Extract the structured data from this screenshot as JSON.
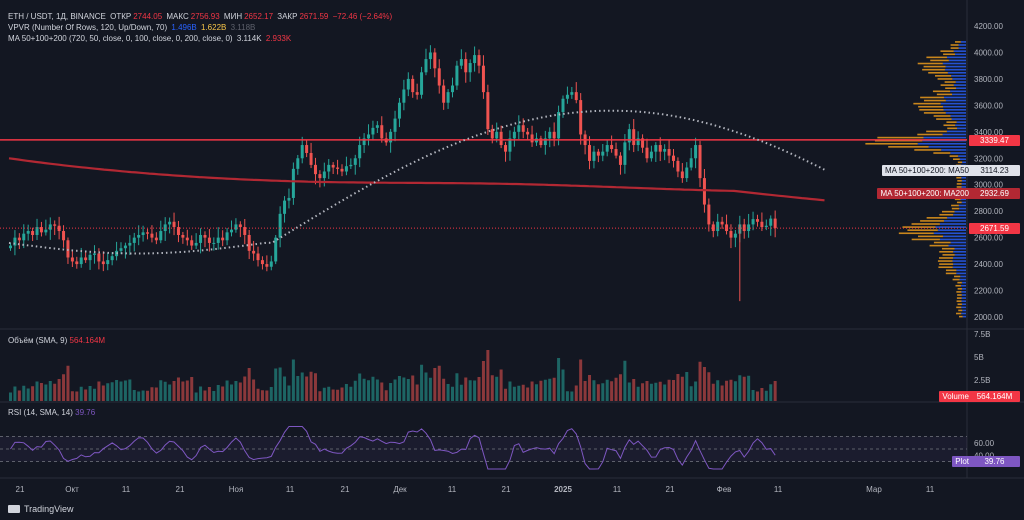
{
  "legend": {
    "symbol": "ETH / USDT, 1Д, BINANCE",
    "open_label": "ОТКР",
    "open": "2744.05",
    "high_label": "МАКС",
    "high": "2756.93",
    "low_label": "МИН",
    "low": "2652.17",
    "close_label": "ЗАКР",
    "close": "2671.59",
    "change": "−72.46 (−2.64%)",
    "vpvr_label": "VPVR (Number Of Rows, 120, Up/Down, 70)",
    "vpvr_up": "1.496B",
    "vpvr_down": "1.622B",
    "vpvr_total": "3.118B",
    "ma_label": "MA 50+100+200 (720, 50, close, 0, 100, close, 0, 200, close, 0)",
    "ma_v1": "3.114K",
    "ma_v2": "2.933K"
  },
  "volume_pane": {
    "title": "Объём (SMA, 9)",
    "value": "564.164M",
    "tag": "Volume",
    "tag_value": "564.164M"
  },
  "rsi_pane": {
    "title": "RSI (14, SMA, 14)",
    "value": "39.76",
    "tag": "Plot",
    "tag_value": "39.76"
  },
  "tags": {
    "ma50": "MA 50+100+200: MA50",
    "ma50_value": "3114.23",
    "ma200": "MA 50+100+200: MA200",
    "ma200_value": "2932.69",
    "level_value": "3339.47",
    "price_value": "2671.59"
  },
  "footer": {
    "brand": "TradingView"
  },
  "colors": {
    "up": "#26a69a",
    "down": "#ef5350",
    "ma200": "#b22833",
    "ma50": "#b2b5be",
    "level": "#f23645",
    "rsi": "#7e57c2",
    "vp_up": "#2962ff",
    "vp_down": "#f7a21b"
  },
  "chart_data": [
    {
      "type": "candlestick",
      "symbol": "ETH / USDT, 1Д, BINANCE",
      "x_tick_labels": [
        "21",
        "Окт",
        "11",
        "21",
        "Ноя",
        "11",
        "21",
        "Дек",
        "11",
        "21",
        "2025",
        "11",
        "21",
        "Фев",
        "11",
        "Мар",
        "11"
      ],
      "y_tick_labels": [
        "2000.00",
        "2200.00",
        "2400.00",
        "2600.00",
        "2800.00",
        "3000.00",
        "3200.00",
        "3400.00",
        "3600.00",
        "3800.00",
        "4000.00",
        "4200.00"
      ],
      "ylim": [
        1900,
        4280
      ],
      "close_approx": [
        2540,
        2600,
        2580,
        2630,
        2650,
        2620,
        2680,
        2640,
        2660,
        2700,
        2690,
        2650,
        2580,
        2450,
        2420,
        2400,
        2450,
        2430,
        2470,
        2480,
        2420,
        2400,
        2430,
        2460,
        2500,
        2520,
        2540,
        2560,
        2600,
        2620,
        2640,
        2630,
        2600,
        2580,
        2650,
        2700,
        2720,
        2680,
        2620,
        2600,
        2580,
        2540,
        2560,
        2620,
        2600,
        2560,
        2560,
        2600,
        2580,
        2640,
        2660,
        2700,
        2680,
        2620,
        2500,
        2480,
        2430,
        2400,
        2380,
        2420,
        2600,
        2780,
        2880,
        2900,
        3120,
        3200,
        3300,
        3240,
        3150,
        3080,
        3050,
        3100,
        3150,
        3130,
        3120,
        3100,
        3140,
        3150,
        3200,
        3300,
        3350,
        3380,
        3430,
        3450,
        3350,
        3320,
        3400,
        3500,
        3620,
        3720,
        3800,
        3700,
        3680,
        3850,
        3950,
        4000,
        3880,
        3750,
        3620,
        3700,
        3750,
        3900,
        3950,
        3850,
        3920,
        3980,
        3900,
        3700,
        3420,
        3350,
        3400,
        3300,
        3250,
        3350,
        3400,
        3450,
        3400,
        3380,
        3320,
        3350,
        3300,
        3350,
        3400,
        3350,
        3550,
        3650,
        3680,
        3700,
        3640,
        3380,
        3300,
        3180,
        3250,
        3220,
        3250,
        3300,
        3270,
        3220,
        3150,
        3320,
        3420,
        3300,
        3350,
        3280,
        3200,
        3250,
        3300,
        3250,
        3270,
        3220,
        3180,
        3100,
        3050,
        3130,
        3200,
        3300,
        3050,
        2850,
        2700,
        2650,
        2720,
        2700,
        2650,
        2600,
        2630,
        2700,
        2650,
        2700,
        2740,
        2720,
        2680,
        2690,
        2744,
        2672
      ],
      "series_lines": [
        {
          "name": "MA50",
          "last": 3114.23
        },
        {
          "name": "MA200",
          "last": 2932.69
        }
      ],
      "horizontal_line": 3339.47,
      "last_price": 2671.59
    },
    {
      "type": "bar",
      "title": "Объём (SMA, 9)",
      "y_tick_labels": [
        "2.5B",
        "5B",
        "7.5B"
      ],
      "ylim": [
        0,
        7.5
      ],
      "last": "564.164M"
    },
    {
      "type": "line",
      "title": "RSI (14, SMA, 14)",
      "y_tick_labels": [
        "40.00",
        "60.00"
      ],
      "ylim": [
        10,
        90
      ],
      "bands": [
        30,
        50,
        70
      ],
      "last": 39.76
    }
  ]
}
